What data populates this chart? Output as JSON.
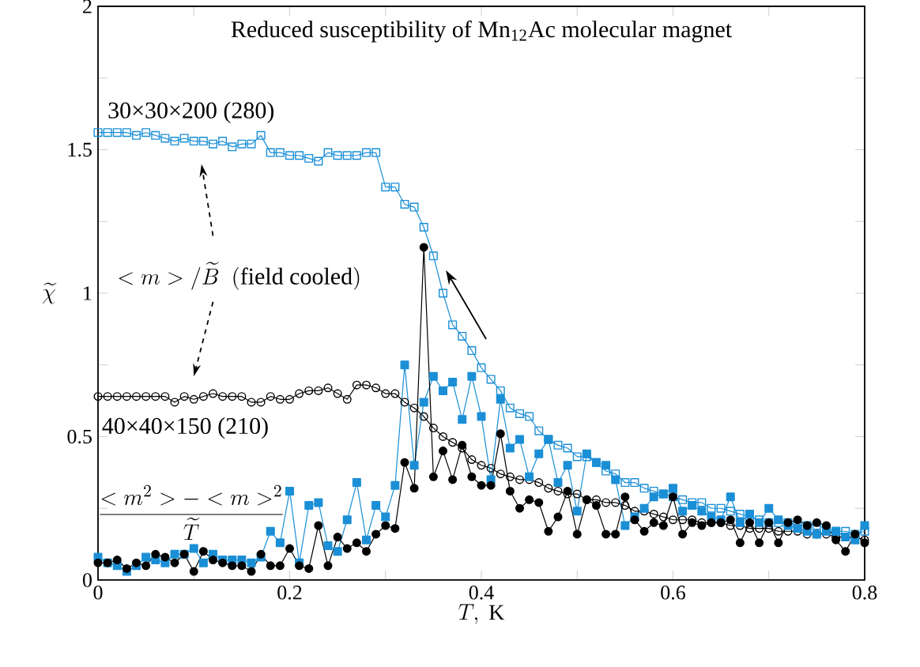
{
  "chart_data": {
    "type": "line",
    "title": "Reduced susceptibility of Mn$_{12}$Ac molecular magnet",
    "xlabel": "T,\\ \\mathrm{K}",
    "ylabel": "\\widetilde{\\chi}",
    "x": [
      0,
      0.01,
      0.02,
      0.03,
      0.04,
      0.05,
      0.06,
      0.07,
      0.08,
      0.09,
      0.1,
      0.11,
      0.12,
      0.13,
      0.14,
      0.15,
      0.16,
      0.17,
      0.18,
      0.19,
      0.2,
      0.21,
      0.22,
      0.23,
      0.24,
      0.25,
      0.26,
      0.27,
      0.28,
      0.29,
      0.3,
      0.31,
      0.32,
      0.33,
      0.34,
      0.35,
      0.36,
      0.37,
      0.38,
      0.39,
      0.4,
      0.41,
      0.42,
      0.43,
      0.44,
      0.45,
      0.46,
      0.47,
      0.48,
      0.49,
      0.5,
      0.51,
      0.52,
      0.53,
      0.54,
      0.55,
      0.56,
      0.57,
      0.58,
      0.59,
      0.6,
      0.61,
      0.62,
      0.63,
      0.64,
      0.65,
      0.66,
      0.67,
      0.68,
      0.69,
      0.7,
      0.71,
      0.72,
      0.73,
      0.74,
      0.75,
      0.76,
      0.77,
      0.78,
      0.79,
      0.8
    ],
    "series": [
      {
        "color": "#1b8fd6",
        "marker": "square",
        "values": [
          1.56,
          1.56,
          1.56,
          1.56,
          1.55,
          1.56,
          1.55,
          1.54,
          1.53,
          1.54,
          1.53,
          1.53,
          1.52,
          1.53,
          1.51,
          1.52,
          1.52,
          1.55,
          1.49,
          1.49,
          1.48,
          1.48,
          1.47,
          1.46,
          1.49,
          1.48,
          1.48,
          1.48,
          1.49,
          1.49,
          1.37,
          1.37,
          1.31,
          1.3,
          1.23,
          1.13,
          1.0,
          0.89,
          0.85,
          0.8,
          0.74,
          0.7,
          0.66,
          0.6,
          0.58,
          0.57,
          0.52,
          0.49,
          0.47,
          0.46,
          0.43,
          0.43,
          0.41,
          0.38,
          0.37,
          0.34,
          0.34,
          0.32,
          0.31,
          0.3,
          0.29,
          0.28,
          0.27,
          0.27,
          0.25,
          0.25,
          0.24,
          0.23,
          0.22,
          0.21,
          0.2,
          0.2,
          0.2,
          0.19,
          0.19,
          0.19,
          0.18,
          0.17,
          0.17,
          0.16,
          0.17
        ]
      },
      {
        "color": "#000000",
        "marker": "circle",
        "values": [
          0.64,
          0.64,
          0.64,
          0.64,
          0.64,
          0.64,
          0.64,
          0.64,
          0.62,
          0.64,
          0.63,
          0.64,
          0.65,
          0.64,
          0.64,
          0.64,
          0.62,
          0.62,
          0.64,
          0.63,
          0.63,
          0.65,
          0.66,
          0.66,
          0.67,
          0.65,
          0.63,
          0.68,
          0.68,
          0.67,
          0.65,
          0.65,
          0.62,
          0.6,
          0.57,
          0.53,
          0.5,
          0.48,
          0.46,
          0.42,
          0.4,
          0.39,
          0.37,
          0.36,
          0.35,
          0.35,
          0.34,
          0.32,
          0.31,
          0.3,
          0.3,
          0.28,
          0.28,
          0.27,
          0.27,
          0.26,
          0.24,
          0.24,
          0.23,
          0.22,
          0.21,
          0.21,
          0.21,
          0.2,
          0.2,
          0.2,
          0.19,
          0.19,
          0.18,
          0.18,
          0.18,
          0.17,
          0.17,
          0.17,
          0.16,
          0.16,
          0.16,
          0.15,
          0.15,
          0.15,
          0.14
        ]
      },
      {
        "color": "#1b8fd6",
        "marker": "square",
        "values": [
          0.08,
          0.06,
          0.05,
          0.03,
          0.05,
          0.08,
          0.07,
          0.06,
          0.09,
          0.09,
          0.11,
          0.06,
          0.09,
          0.07,
          0.07,
          0.07,
          0.06,
          0.08,
          0.17,
          0.13,
          0.31,
          0.06,
          0.26,
          0.27,
          0.12,
          0.1,
          0.21,
          0.34,
          0.14,
          0.26,
          0.22,
          0.33,
          0.75,
          0.4,
          0.62,
          0.71,
          0.66,
          0.69,
          0.56,
          0.71,
          0.57,
          0.35,
          0.63,
          0.46,
          0.49,
          0.36,
          0.44,
          0.49,
          0.34,
          0.4,
          0.24,
          0.44,
          0.41,
          0.4,
          0.35,
          0.19,
          0.22,
          0.25,
          0.29,
          0.3,
          0.32,
          0.24,
          0.26,
          0.24,
          0.22,
          0.21,
          0.29,
          0.2,
          0.23,
          0.2,
          0.25,
          0.21,
          0.19,
          0.18,
          0.17,
          0.16,
          0.17,
          0.17,
          0.15,
          0.14,
          0.19
        ]
      },
      {
        "color": "#000000",
        "marker": "circle",
        "values": [
          0.06,
          0.06,
          0.07,
          0.04,
          0.06,
          0.05,
          0.09,
          0.08,
          0.06,
          0.09,
          0.03,
          0.1,
          0.07,
          0.06,
          0.05,
          0.05,
          0.03,
          0.09,
          0.05,
          0.05,
          0.11,
          0.05,
          0.04,
          0.19,
          0.05,
          0.15,
          0.11,
          0.13,
          0.1,
          0.16,
          0.19,
          0.18,
          0.41,
          0.32,
          1.16,
          0.36,
          0.45,
          0.35,
          0.47,
          0.36,
          0.33,
          0.33,
          0.51,
          0.31,
          0.25,
          0.28,
          0.27,
          0.17,
          0.22,
          0.31,
          0.16,
          0.28,
          0.26,
          0.16,
          0.16,
          0.29,
          0.21,
          0.17,
          0.2,
          0.19,
          0.29,
          0.16,
          0.2,
          0.19,
          0.2,
          0.2,
          0.21,
          0.13,
          0.2,
          0.13,
          0.2,
          0.13,
          0.2,
          0.21,
          0.19,
          0.2,
          0.19,
          0.14,
          0.1,
          0.16,
          0.13
        ]
      }
    ],
    "annotations": [
      "30×30×200 (280)",
      "40×40×150 (210)",
      "<m>/\\widetilde{B}\\ \\ \\mathrm{(field\\ cooled)}",
      "\\frac{<m^2>-<m>^2}{\\widetilde{T}}"
    ],
    "xlim": [
      0,
      0.8
    ],
    "ylim": [
      0,
      2
    ],
    "xticks": [
      0,
      {
        "value": 0.1,
        "label": null
      },
      0.2,
      {
        "value": 0.3,
        "label": null
      },
      0.4,
      {
        "value": 0.5,
        "label": null
      },
      0.6,
      {
        "value": 0.7,
        "label": null
      },
      0.8
    ],
    "yticks": [
      0,
      {
        "value": 0.25,
        "label": null
      },
      0.5,
      {
        "value": 0.75,
        "label": null
      },
      1,
      {
        "value": 1.25,
        "label": null
      },
      1.5,
      {
        "value": 1.75,
        "label": null
      },
      2
    ]
  }
}
